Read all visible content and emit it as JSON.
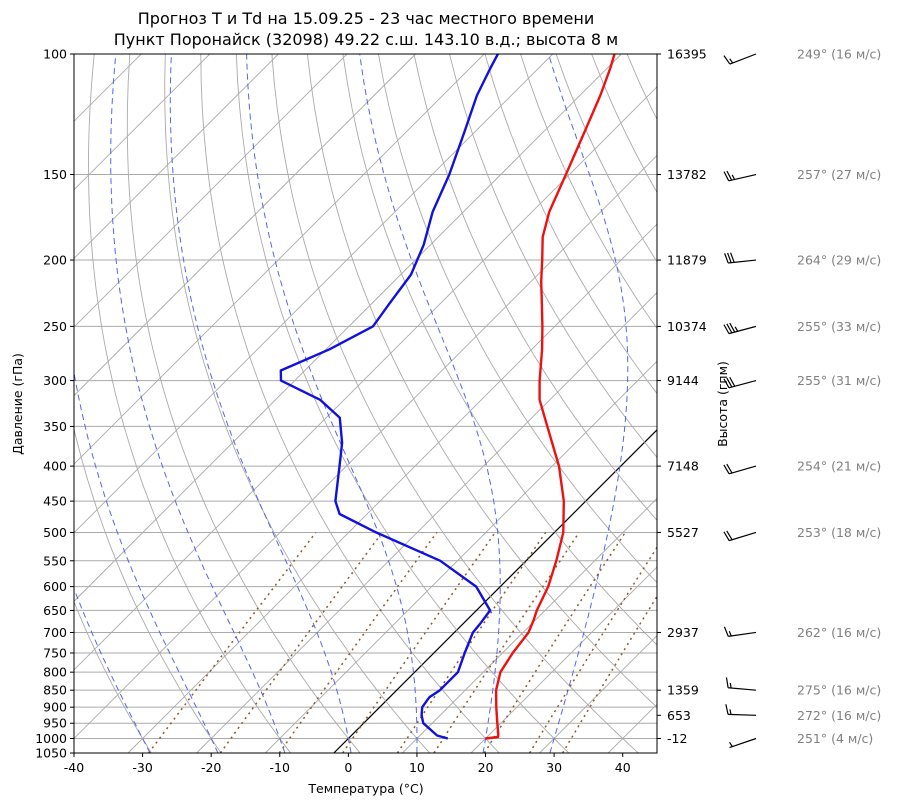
{
  "chart_data": {
    "type": "line",
    "title": "Прогноз T и Td на 15.09.25 - 23 час местного времени",
    "subtitle": "Пункт Поронайск (32098) 49.22 с.ш. 143.10 в.д.; высота 8 м",
    "xlabel": "Температура (°C)",
    "ylabel": "Давление (гПа)",
    "ylabel_right": "Высота (гпм)",
    "xlim": [
      -40,
      45
    ],
    "ylim": [
      1050,
      100
    ],
    "y_scale": "log",
    "x_ticks": [
      "-40",
      "-30",
      "-20",
      "-10",
      "0",
      "10",
      "20",
      "30",
      "40"
    ],
    "y_ticks": [
      "100",
      "150",
      "200",
      "250",
      "300",
      "350",
      "400",
      "450",
      "500",
      "550",
      "600",
      "650",
      "700",
      "750",
      "800",
      "850",
      "900",
      "950",
      "1000",
      "1050"
    ],
    "heights": [
      {
        "p": 100,
        "label": "16395"
      },
      {
        "p": 150,
        "label": "13782"
      },
      {
        "p": 200,
        "label": "11879"
      },
      {
        "p": 250,
        "label": "10374"
      },
      {
        "p": 300,
        "label": "9144"
      },
      {
        "p": 400,
        "label": "7148"
      },
      {
        "p": 500,
        "label": "5527"
      },
      {
        "p": 700,
        "label": "2937"
      },
      {
        "p": 850,
        "label": "1359"
      },
      {
        "p": 925,
        "label": "653"
      },
      {
        "p": 1000,
        "label": "-12"
      }
    ],
    "series": [
      {
        "color": "#ee1111",
        "points": [
          [
            1000,
            20.0
          ],
          [
            995,
            21.6
          ],
          [
            985,
            21.2
          ],
          [
            950,
            19.5
          ],
          [
            900,
            17.0
          ],
          [
            850,
            14.5
          ],
          [
            800,
            12.5
          ],
          [
            750,
            11.5
          ],
          [
            700,
            10.8
          ],
          [
            670,
            9.7
          ],
          [
            650,
            8.8
          ],
          [
            600,
            7.0
          ],
          [
            550,
            4.4
          ],
          [
            500,
            1.3
          ],
          [
            450,
            -3.2
          ],
          [
            400,
            -9.0
          ],
          [
            350,
            -16.5
          ],
          [
            320,
            -21.5
          ],
          [
            300,
            -24.3
          ],
          [
            270,
            -28.5
          ],
          [
            250,
            -31.8
          ],
          [
            230,
            -35.5
          ],
          [
            215,
            -38.5
          ],
          [
            200,
            -41.5
          ],
          [
            185,
            -44.8
          ],
          [
            170,
            -47.5
          ],
          [
            150,
            -50.5
          ],
          [
            130,
            -54.0
          ],
          [
            115,
            -57.0
          ],
          [
            105,
            -59.5
          ],
          [
            100,
            -61.0
          ]
        ]
      },
      {
        "color": "#1111dd",
        "points": [
          [
            1000,
            14.5
          ],
          [
            990,
            12.5
          ],
          [
            950,
            8.7
          ],
          [
            925,
            7.3
          ],
          [
            900,
            6.2
          ],
          [
            870,
            5.8
          ],
          [
            850,
            6.3
          ],
          [
            800,
            6.3
          ],
          [
            750,
            4.5
          ],
          [
            700,
            2.7
          ],
          [
            680,
            2.5
          ],
          [
            650,
            2.0
          ],
          [
            600,
            -3.5
          ],
          [
            550,
            -12.5
          ],
          [
            500,
            -26.0
          ],
          [
            470,
            -34.0
          ],
          [
            450,
            -36.5
          ],
          [
            400,
            -41.0
          ],
          [
            370,
            -44.0
          ],
          [
            340,
            -48.0
          ],
          [
            320,
            -53.5
          ],
          [
            300,
            -62.0
          ],
          [
            290,
            -63.5
          ],
          [
            270,
            -59.5
          ],
          [
            250,
            -56.5
          ],
          [
            230,
            -57.5
          ],
          [
            210,
            -58.5
          ],
          [
            190,
            -61.0
          ],
          [
            170,
            -64.5
          ],
          [
            150,
            -67.5
          ],
          [
            130,
            -71.5
          ],
          [
            115,
            -75.0
          ],
          [
            105,
            -77.0
          ],
          [
            100,
            -78.0
          ]
        ]
      }
    ],
    "dry_adiabats_theta_c": [
      -30,
      -20,
      -10,
      0,
      10,
      20,
      30,
      40,
      50,
      60,
      70,
      80,
      90,
      100,
      110,
      120,
      130,
      140,
      150,
      160,
      170,
      180
    ],
    "moist_adiabats_c": [
      -30,
      -20,
      -10,
      0,
      10,
      20,
      30
    ],
    "mixing_ratios_gkg": [
      0.4,
      1,
      2,
      4,
      7,
      10,
      16,
      24,
      32
    ],
    "isotherm_highlight_c": 0,
    "colors": {
      "temperature": "#ee1111",
      "dewpoint": "#1111dd",
      "grid": "#aaaaaa",
      "moist_adiabat": "#5566ee",
      "mixing_ratio": "#8b5a2b",
      "wind_text": "#808080"
    },
    "winds": [
      {
        "p": 1000,
        "label": "251° (4 м/с)",
        "dir": 251,
        "speed": 4
      },
      {
        "p": 925,
        "label": "272° (16 м/с)",
        "dir": 272,
        "speed": 16
      },
      {
        "p": 850,
        "label": "275° (16 м/с)",
        "dir": 275,
        "speed": 16
      },
      {
        "p": 700,
        "label": "262° (16 м/с)",
        "dir": 262,
        "speed": 16
      },
      {
        "p": 500,
        "label": "253° (18 м/с)",
        "dir": 253,
        "speed": 18
      },
      {
        "p": 400,
        "label": "254° (21 м/с)",
        "dir": 254,
        "speed": 21
      },
      {
        "p": 300,
        "label": "255° (31 м/с)",
        "dir": 255,
        "speed": 31
      },
      {
        "p": 250,
        "label": "255° (33 м/с)",
        "dir": 255,
        "speed": 33
      },
      {
        "p": 200,
        "label": "264° (29 м/с)",
        "dir": 264,
        "speed": 29
      },
      {
        "p": 150,
        "label": "257° (27 м/с)",
        "dir": 257,
        "speed": 27
      },
      {
        "p": 100,
        "label": "249° (16 м/с)",
        "dir": 249,
        "speed": 16
      }
    ]
  }
}
